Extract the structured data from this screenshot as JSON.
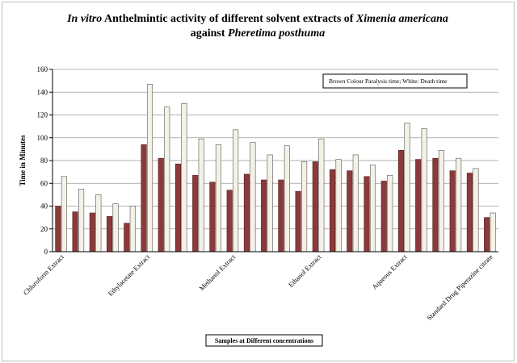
{
  "chart_data": {
    "type": "bar",
    "title": {
      "line1": [
        {
          "text": "In vitro",
          "italic": true
        },
        {
          "text": " Anthelmintic activity of different solvent extracts of ",
          "italic": false
        },
        {
          "text": "Ximenia americana",
          "italic": true
        }
      ],
      "line2": [
        {
          "text": "against ",
          "italic": false
        },
        {
          "text": "Pheretima posthuma",
          "italic": true
        }
      ]
    },
    "xlabel": "Samples at Different concentrations",
    "ylabel": "Time in Minutes",
    "ylim": [
      0,
      160
    ],
    "yticks": [
      0,
      20,
      40,
      60,
      80,
      100,
      120,
      140,
      160
    ],
    "grid": true,
    "legend_text": "Brown Colour Paralysis time; White: Death time",
    "legend_position": "top-right",
    "category_labels": [
      {
        "label": "Chloroform Extract",
        "index": 0
      },
      {
        "label": "Ethylacetate Extract",
        "index": 5
      },
      {
        "label": "Methanol Extract",
        "index": 10
      },
      {
        "label": "Ethanol Extract",
        "index": 15
      },
      {
        "label": "Aqueous Extract",
        "index": 20
      },
      {
        "label": "Standard Drug Piperazine citrate",
        "index": 25
      }
    ],
    "series": [
      {
        "color": "#8b3a3a",
        "values": [
          40,
          35,
          34,
          31,
          25,
          94,
          82,
          77,
          67,
          61,
          54,
          68,
          63,
          63,
          53,
          79,
          72,
          71,
          66,
          62,
          89,
          81,
          82,
          71,
          69,
          30
        ]
      },
      {
        "color": "#f4f1e6",
        "values": [
          66,
          55,
          50,
          42,
          40,
          147,
          127,
          130,
          99,
          94,
          107,
          96,
          85,
          93,
          79,
          99,
          81,
          85,
          76,
          67,
          113,
          108,
          89,
          82,
          73,
          34
        ]
      }
    ]
  }
}
